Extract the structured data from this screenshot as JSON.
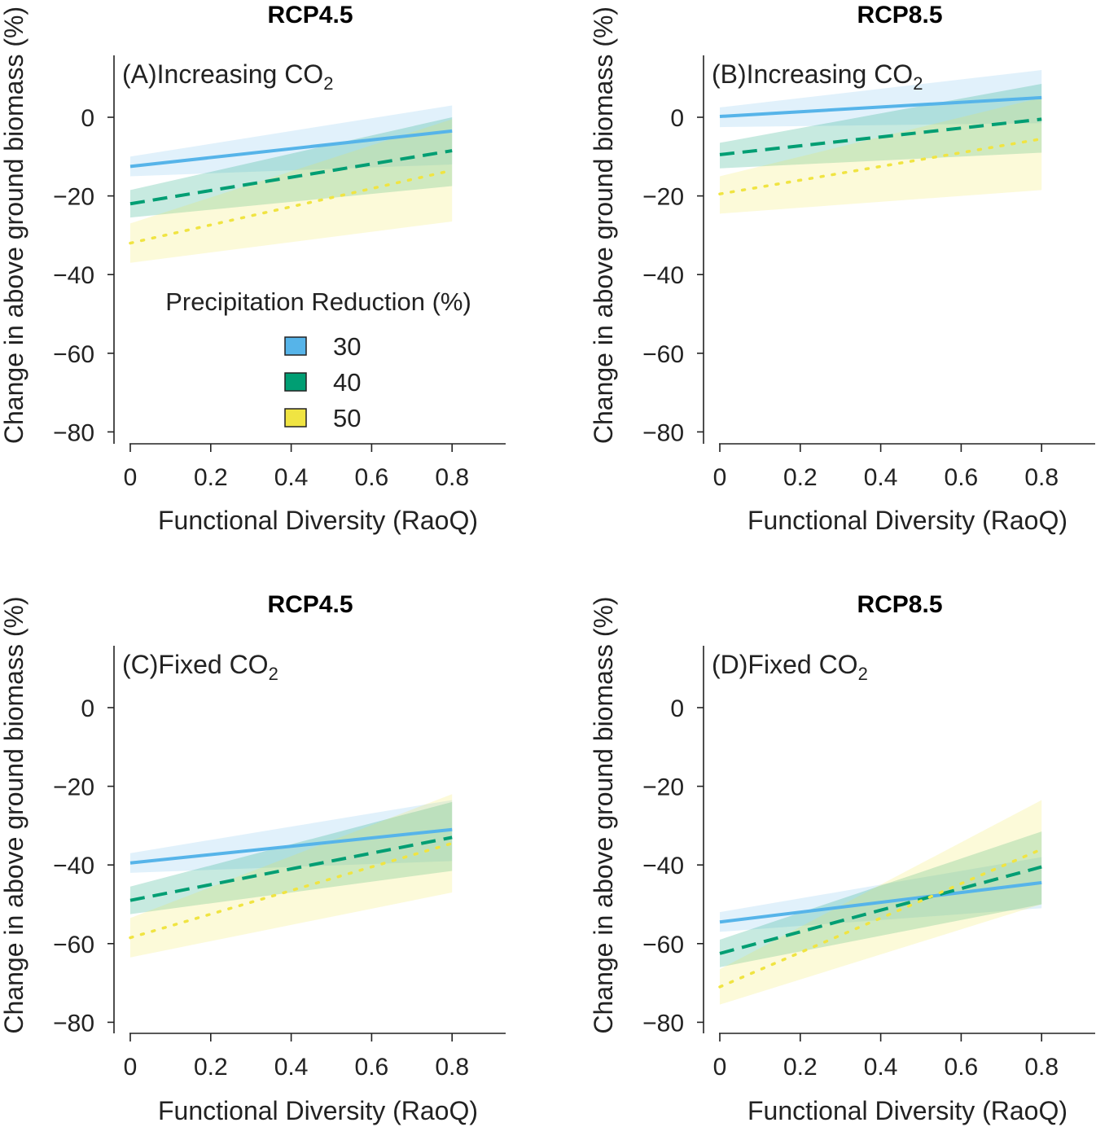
{
  "figure": {
    "legend": {
      "title": "Precipitation Reduction (%)",
      "items": [
        {
          "label": "30",
          "color": "#56b4e9"
        },
        {
          "label": "40",
          "color": "#009e73"
        },
        {
          "label": "50",
          "color": "#f0e442"
        }
      ]
    }
  },
  "chart_data": [
    {
      "type": "line",
      "title": "RCP4.5",
      "panel_label": "(A)Increasing CO",
      "panel_sub": "2",
      "xlabel": "Functional Diversity (RaoQ)",
      "ylabel": "Change in above ground biomass (%)",
      "xlim": [
        0,
        0.95
      ],
      "ylim": [
        -83,
        16
      ],
      "x_ticks": [
        0,
        0.2,
        0.4,
        0.6,
        0.8
      ],
      "x_tick_labels": [
        "0",
        "0.2",
        "0.4",
        "0.6",
        "0.8"
      ],
      "y_ticks": [
        0,
        -20,
        -40,
        -60,
        -80
      ],
      "y_tick_labels": [
        "0",
        "−20",
        "−40",
        "−60",
        "−80"
      ],
      "x": [
        0,
        0.8
      ],
      "series": [
        {
          "name": "30",
          "values": [
            -12.5,
            -3.5
          ],
          "ci_low": [
            -15,
            -12
          ],
          "ci_high": [
            -10,
            3
          ]
        },
        {
          "name": "40",
          "values": [
            -22,
            -8.5
          ],
          "ci_low": [
            -25.5,
            -17.5
          ],
          "ci_high": [
            -18.5,
            0
          ]
        },
        {
          "name": "50",
          "values": [
            -32,
            -13.5
          ],
          "ci_low": [
            -37,
            -26.5
          ],
          "ci_high": [
            -27,
            -0.5
          ]
        }
      ]
    },
    {
      "type": "line",
      "title": "RCP8.5",
      "panel_label": "(B)Increasing CO",
      "panel_sub": "2",
      "xlabel": "Functional Diversity (RaoQ)",
      "ylabel": "Change in above ground biomass (%)",
      "xlim": [
        0,
        0.95
      ],
      "ylim": [
        -83,
        16
      ],
      "x_ticks": [
        0,
        0.2,
        0.4,
        0.6,
        0.8
      ],
      "x_tick_labels": [
        "0",
        "0.2",
        "0.4",
        "0.6",
        "0.8"
      ],
      "y_ticks": [
        0,
        -20,
        -40,
        -60,
        -80
      ],
      "y_tick_labels": [
        "0",
        "−20",
        "−40",
        "−60",
        "−80"
      ],
      "x": [
        0,
        0.8
      ],
      "series": [
        {
          "name": "30",
          "values": [
            0.2,
            5
          ],
          "ci_low": [
            -2.5,
            -1.5
          ],
          "ci_high": [
            2.5,
            12
          ]
        },
        {
          "name": "40",
          "values": [
            -9.5,
            -0.5
          ],
          "ci_low": [
            -13,
            -9
          ],
          "ci_high": [
            -6.5,
            8.5
          ]
        },
        {
          "name": "50",
          "values": [
            -19.5,
            -5.5
          ],
          "ci_low": [
            -24.5,
            -18.5
          ],
          "ci_high": [
            -15,
            5
          ]
        }
      ]
    },
    {
      "type": "line",
      "title": "RCP4.5",
      "panel_label": "(C)Fixed CO",
      "panel_sub": "2",
      "xlabel": "Functional Diversity (RaoQ)",
      "ylabel": "Change in above ground biomass (%)",
      "xlim": [
        0,
        0.95
      ],
      "ylim": [
        -83,
        16
      ],
      "x_ticks": [
        0,
        0.2,
        0.4,
        0.6,
        0.8
      ],
      "x_tick_labels": [
        "0",
        "0.2",
        "0.4",
        "0.6",
        "0.8"
      ],
      "y_ticks": [
        0,
        -20,
        -40,
        -60,
        -80
      ],
      "y_tick_labels": [
        "0",
        "−20",
        "−40",
        "−60",
        "−80"
      ],
      "x": [
        0,
        0.8
      ],
      "series": [
        {
          "name": "30",
          "values": [
            -39.5,
            -31
          ],
          "ci_low": [
            -42,
            -39
          ],
          "ci_high": [
            -37,
            -23.5
          ]
        },
        {
          "name": "40",
          "values": [
            -49,
            -33
          ],
          "ci_low": [
            -52.5,
            -41.5
          ],
          "ci_high": [
            -45.5,
            -24
          ]
        },
        {
          "name": "50",
          "values": [
            -58.5,
            -34.5
          ],
          "ci_low": [
            -63.5,
            -47
          ],
          "ci_high": [
            -53.5,
            -22
          ]
        }
      ]
    },
    {
      "type": "line",
      "title": "RCP8.5",
      "panel_label": "(D)Fixed CO",
      "panel_sub": "2",
      "xlabel": "Functional Diversity (RaoQ)",
      "ylabel": "Change in above ground biomass (%)",
      "xlim": [
        0,
        0.95
      ],
      "ylim": [
        -83,
        16
      ],
      "x_ticks": [
        0,
        0.2,
        0.4,
        0.6,
        0.8
      ],
      "x_tick_labels": [
        "0",
        "0.2",
        "0.4",
        "0.6",
        "0.8"
      ],
      "y_ticks": [
        0,
        -20,
        -40,
        -60,
        -80
      ],
      "y_tick_labels": [
        "0",
        "−20",
        "−40",
        "−60",
        "−80"
      ],
      "x": [
        0,
        0.8
      ],
      "series": [
        {
          "name": "30",
          "values": [
            -54.5,
            -44.5
          ],
          "ci_low": [
            -57,
            -51
          ],
          "ci_high": [
            -52,
            -38
          ]
        },
        {
          "name": "40",
          "values": [
            -62.5,
            -40.5
          ],
          "ci_low": [
            -66,
            -50
          ],
          "ci_high": [
            -59,
            -31.5
          ]
        },
        {
          "name": "50",
          "values": [
            -71,
            -36
          ],
          "ci_low": [
            -75.5,
            -50
          ],
          "ci_high": [
            -66.5,
            -23.5
          ]
        }
      ]
    }
  ]
}
